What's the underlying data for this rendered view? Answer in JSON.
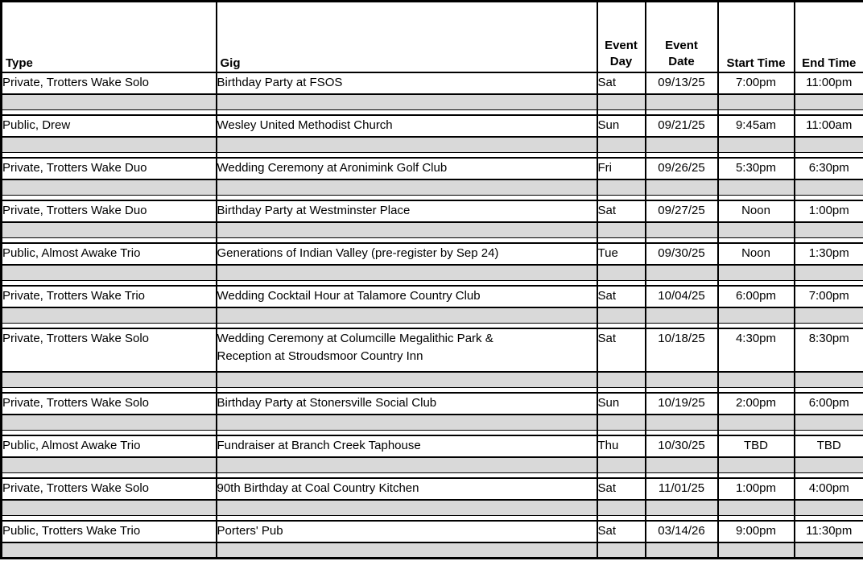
{
  "table": {
    "columns": [
      {
        "key": "type",
        "label": "Type"
      },
      {
        "key": "gig",
        "label": "Gig"
      },
      {
        "key": "event_day",
        "label_line1": "Event",
        "label_line2": "Day"
      },
      {
        "key": "event_date",
        "label_line1": "Event",
        "label_line2": "Date"
      },
      {
        "key": "start_time",
        "label": "Start Time"
      },
      {
        "key": "end_time",
        "label": "End Time"
      }
    ],
    "rows": [
      {
        "type": "Private, Trotters Wake Solo",
        "gig": "Birthday Party at FSOS",
        "event_day": "Sat",
        "event_date": "09/13/25",
        "start_time": "7:00pm",
        "end_time": "11:00pm"
      },
      {
        "type": "Public, Drew",
        "gig": "Wesley United Methodist Church",
        "event_day": "Sun",
        "event_date": "09/21/25",
        "start_time": "9:45am",
        "end_time": "11:00am"
      },
      {
        "type": "Private, Trotters Wake Duo",
        "gig": "Wedding Ceremony at Aronimink Golf Club",
        "event_day": "Fri",
        "event_date": "09/26/25",
        "start_time": "5:30pm",
        "end_time": "6:30pm"
      },
      {
        "type": "Private, Trotters Wake Duo",
        "gig": "Birthday Party at Westminster Place",
        "event_day": "Sat",
        "event_date": "09/27/25",
        "start_time": "Noon",
        "end_time": "1:00pm"
      },
      {
        "type": "Public, Almost Awake Trio",
        "gig": "Generations of Indian Valley (pre-register by Sep 24)",
        "event_day": "Tue",
        "event_date": "09/30/25",
        "start_time": "Noon",
        "end_time": "1:30pm"
      },
      {
        "type": "Private, Trotters Wake Trio",
        "gig": "Wedding Cocktail Hour at Talamore Country Club",
        "event_day": "Sat",
        "event_date": "10/04/25",
        "start_time": "6:00pm",
        "end_time": "7:00pm"
      },
      {
        "type": "Private, Trotters Wake Solo",
        "gig": "Wedding Ceremony at Columcille Megalithic Park &\nReception at Stroudsmoor Country Inn",
        "event_day": "Sat",
        "event_date": "10/18/25",
        "start_time": "4:30pm",
        "end_time": "8:30pm",
        "tall": true
      },
      {
        "type": "Private, Trotters Wake Solo",
        "gig": "Birthday Party at Stonersville Social Club",
        "event_day": "Sun",
        "event_date": "10/19/25",
        "start_time": "2:00pm",
        "end_time": "6:00pm"
      },
      {
        "type": "Public, Almost Awake Trio",
        "gig": "Fundraiser at Branch Creek Taphouse",
        "event_day": "Thu",
        "event_date": "10/30/25",
        "start_time": "TBD",
        "end_time": "TBD",
        "highlight": true
      },
      {
        "type": "Private, Trotters Wake Solo",
        "gig": "90th Birthday at Coal Country Kitchen",
        "event_day": "Sat",
        "event_date": "11/01/25",
        "start_time": "1:00pm",
        "end_time": "4:00pm"
      },
      {
        "type": "Public, Trotters Wake Trio",
        "gig": "Porters' Pub",
        "event_day": "Sat",
        "event_date": "03/14/26",
        "start_time": "9:00pm",
        "end_time": "11:30pm"
      }
    ],
    "colors": {
      "highlight": "#FFFF00",
      "spacer": "#D9D9D9",
      "border": "#000000",
      "text": "#000000"
    }
  }
}
